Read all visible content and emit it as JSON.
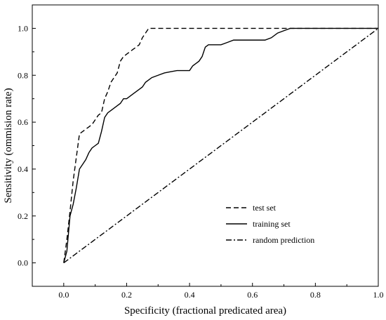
{
  "chart_data": {
    "type": "line",
    "title": "",
    "xlabel": "Specificity (fractional predicated area)",
    "ylabel": "Sensitivity (ommision rate)",
    "xlim": [
      -0.1,
      1.0
    ],
    "ylim": [
      -0.1,
      1.1
    ],
    "x_ticks": [
      "0.0",
      "0.2",
      "0.4",
      "0.6",
      "0.8",
      "1.0"
    ],
    "y_ticks": [
      "0.0",
      "0.2",
      "0.4",
      "0.6",
      "0.8",
      "1.0"
    ],
    "grid": false,
    "legend_position": "lower-right",
    "series": [
      {
        "name": "test set",
        "style": "dashed",
        "color": "#000000",
        "x": [
          0.0,
          0.01,
          0.02,
          0.03,
          0.04,
          0.05,
          0.06,
          0.07,
          0.08,
          0.09,
          0.1,
          0.11,
          0.12,
          0.13,
          0.14,
          0.15,
          0.16,
          0.17,
          0.18,
          0.19,
          0.2,
          0.22,
          0.24,
          0.25,
          0.26,
          0.27,
          0.28,
          0.3,
          0.4,
          0.5,
          0.6,
          0.7,
          0.8,
          0.9,
          1.0
        ],
        "y": [
          0.0,
          0.1,
          0.22,
          0.35,
          0.45,
          0.55,
          0.56,
          0.57,
          0.58,
          0.59,
          0.61,
          0.63,
          0.64,
          0.7,
          0.73,
          0.77,
          0.79,
          0.81,
          0.86,
          0.88,
          0.89,
          0.91,
          0.93,
          0.96,
          0.98,
          1.0,
          1.0,
          1.0,
          1.0,
          1.0,
          1.0,
          1.0,
          1.0,
          1.0,
          1.0
        ]
      },
      {
        "name": "training set",
        "style": "solid",
        "color": "#000000",
        "x": [
          0.0,
          0.01,
          0.02,
          0.03,
          0.04,
          0.05,
          0.06,
          0.07,
          0.08,
          0.09,
          0.1,
          0.11,
          0.12,
          0.13,
          0.14,
          0.15,
          0.16,
          0.17,
          0.18,
          0.19,
          0.2,
          0.22,
          0.24,
          0.25,
          0.26,
          0.28,
          0.3,
          0.32,
          0.34,
          0.36,
          0.38,
          0.4,
          0.41,
          0.42,
          0.43,
          0.44,
          0.45,
          0.46,
          0.48,
          0.5,
          0.52,
          0.54,
          0.56,
          0.58,
          0.6,
          0.62,
          0.64,
          0.66,
          0.68,
          0.7,
          0.72,
          0.74,
          0.76,
          0.8,
          0.9,
          1.0
        ],
        "y": [
          0.0,
          0.05,
          0.2,
          0.25,
          0.32,
          0.4,
          0.42,
          0.44,
          0.47,
          0.49,
          0.5,
          0.51,
          0.56,
          0.62,
          0.64,
          0.65,
          0.66,
          0.67,
          0.68,
          0.7,
          0.7,
          0.72,
          0.74,
          0.75,
          0.77,
          0.79,
          0.8,
          0.81,
          0.815,
          0.82,
          0.82,
          0.82,
          0.84,
          0.85,
          0.86,
          0.88,
          0.92,
          0.93,
          0.93,
          0.93,
          0.94,
          0.95,
          0.95,
          0.95,
          0.95,
          0.95,
          0.95,
          0.96,
          0.98,
          0.99,
          1.0,
          1.0,
          1.0,
          1.0,
          1.0,
          1.0
        ]
      },
      {
        "name": "random prediction",
        "style": "dashdot",
        "color": "#000000",
        "x": [
          0.0,
          1.0
        ],
        "y": [
          0.0,
          1.0
        ]
      }
    ]
  }
}
